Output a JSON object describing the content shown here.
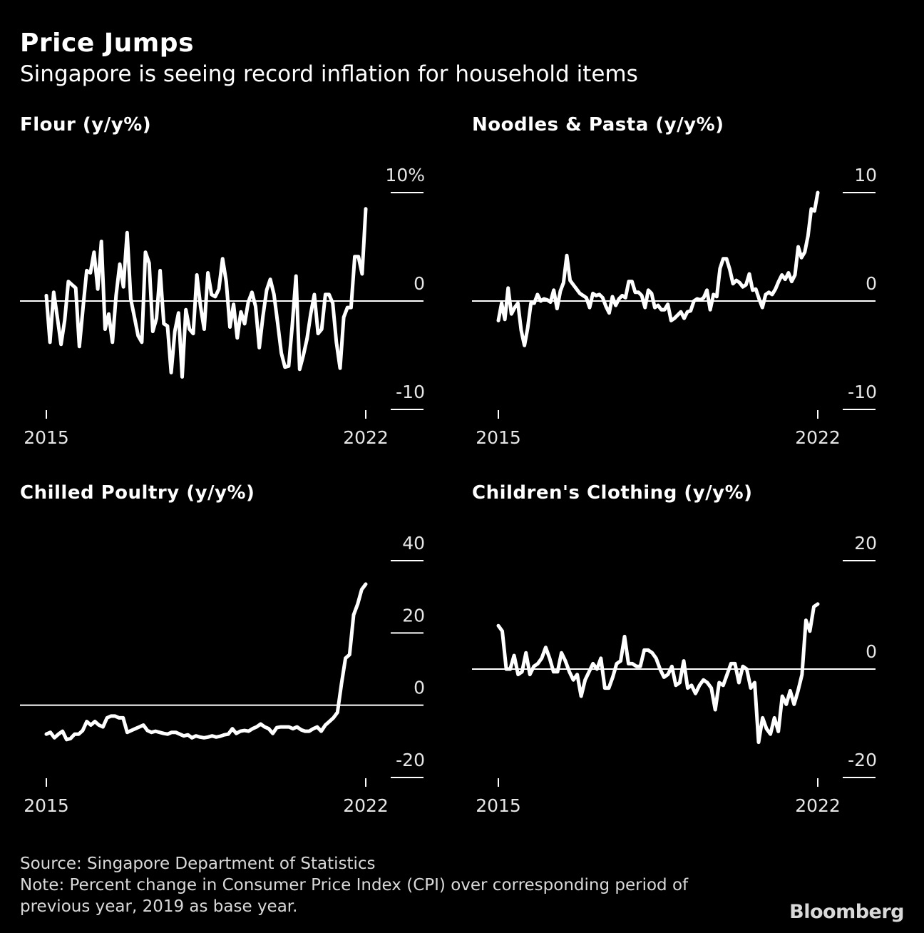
{
  "header": {
    "title": "Price Jumps",
    "subtitle": "Singapore is seeing record inflation for household items"
  },
  "footer": {
    "source": "Source: Singapore Department of Statistics",
    "note_line1": "Note: Percent change in Consumer Price Index (CPI) over corresponding period of",
    "note_line2": "previous year, 2019 as base year.",
    "logo": "Bloomberg"
  },
  "colors": {
    "background": "#000000",
    "line": "#ffffff",
    "text": "#ffffff",
    "muted": "#d9d9d9"
  },
  "chart_data": [
    {
      "type": "line",
      "title": "Flour (y/y%)",
      "x_start": 2015,
      "x_end": 2022,
      "x_tick_labels": [
        "2015",
        "2022"
      ],
      "ylim": [
        -10,
        10
      ],
      "y_tick_labels": [
        "10%",
        "0",
        "-10"
      ],
      "values": [
        0.5,
        -3.8,
        0.8,
        -1.5,
        -4.0,
        -1.8,
        1.8,
        1.5,
        1.2,
        -4.2,
        -0.6,
        2.8,
        2.6,
        4.5,
        1.1,
        5.5,
        -2.6,
        -1.2,
        -3.8,
        0.5,
        3.4,
        1.3,
        6.3,
        0.2,
        -1.5,
        -3.2,
        -3.8,
        4.5,
        3.5,
        -2.8,
        -1.6,
        2.8,
        -2.1,
        -2.3,
        -6.6,
        -2.8,
        -1.1,
        -7.0,
        -0.8,
        -2.6,
        -3.0,
        2.4,
        -0.5,
        -2.6,
        2.6,
        0.6,
        0.4,
        1.1,
        3.9,
        1.8,
        -2.4,
        -0.3,
        -3.4,
        -1.0,
        -2.1,
        -0.1,
        0.8,
        -0.5,
        -4.3,
        -1.4,
        1.0,
        2.0,
        0.6,
        -2.0,
        -4.8,
        -6.1,
        -6.0,
        -2.2,
        2.3,
        -6.3,
        -5.0,
        -3.5,
        -1.2,
        0.6,
        -3.0,
        -2.6,
        0.6,
        0.6,
        -0.2,
        -3.8,
        -6.2,
        -1.5,
        -0.6,
        -0.6,
        4.1,
        4.1,
        2.5,
        8.5
      ]
    },
    {
      "type": "line",
      "title": "Noodles & Pasta (y/y%)",
      "x_start": 2015,
      "x_end": 2022,
      "x_tick_labels": [
        "2015",
        "2022"
      ],
      "ylim": [
        -10,
        10
      ],
      "y_tick_labels": [
        "10",
        "0",
        "-10"
      ],
      "values": [
        -1.8,
        -0.2,
        -1.7,
        1.2,
        -1.2,
        -0.6,
        -0.2,
        -2.7,
        -4.1,
        -2.5,
        -0.2,
        -0.2,
        0.6,
        0.0,
        0.2,
        0.1,
        -0.1,
        1.0,
        -0.7,
        0.9,
        1.7,
        4.2,
        1.9,
        1.5,
        1.1,
        0.7,
        0.5,
        0.3,
        -0.6,
        0.7,
        0.5,
        0.6,
        0.3,
        -0.5,
        -1.1,
        0.4,
        -0.4,
        0.2,
        0.5,
        0.3,
        1.8,
        1.8,
        0.8,
        0.8,
        0.5,
        -0.6,
        1.0,
        0.7,
        -0.6,
        -0.4,
        -0.8,
        -0.8,
        -0.3,
        -1.8,
        -1.6,
        -1.3,
        -1.0,
        -1.6,
        -1.0,
        -0.9,
        0.0,
        0.2,
        0.1,
        0.3,
        1.0,
        -0.8,
        0.6,
        0.4,
        3.0,
        3.9,
        3.9,
        2.9,
        1.6,
        1.9,
        1.7,
        1.3,
        1.5,
        2.5,
        1.0,
        1.1,
        0.2,
        -0.6,
        0.6,
        0.8,
        0.6,
        1.1,
        1.8,
        2.4,
        2.0,
        2.6,
        1.8,
        2.4,
        5.0,
        4.0,
        4.5,
        6.0,
        8.5,
        8.3,
        10.0
      ]
    },
    {
      "type": "line",
      "title": "Chilled Poultry (y/y%)",
      "x_start": 2015,
      "x_end": 2022,
      "x_tick_labels": [
        "2015",
        "2022"
      ],
      "ylim": [
        -20,
        40
      ],
      "y_tick_labels": [
        "40",
        "20",
        "0",
        "-20"
      ],
      "values": [
        -8.0,
        -7.5,
        -9.0,
        -8.0,
        -7.2,
        -9.5,
        -9.2,
        -8.0,
        -8.0,
        -7.0,
        -4.5,
        -5.5,
        -4.5,
        -5.5,
        -6.0,
        -3.5,
        -3.0,
        -3.0,
        -3.5,
        -3.5,
        -7.5,
        -7.0,
        -6.5,
        -6.0,
        -5.5,
        -7.0,
        -7.5,
        -7.2,
        -7.5,
        -7.8,
        -8.0,
        -7.5,
        -7.5,
        -8.0,
        -8.5,
        -8.2,
        -9.0,
        -8.5,
        -8.8,
        -9.0,
        -8.8,
        -8.5,
        -8.8,
        -8.6,
        -8.2,
        -8.0,
        -6.5,
        -7.8,
        -7.2,
        -7.0,
        -7.2,
        -6.5,
        -6.0,
        -5.2,
        -6.0,
        -6.5,
        -7.8,
        -6.2,
        -6.0,
        -6.0,
        -6.0,
        -6.5,
        -6.0,
        -6.8,
        -7.2,
        -7.2,
        -6.5,
        -6.0,
        -7.2,
        -5.5,
        -4.5,
        -3.5,
        -2.0,
        6.0,
        13.0,
        14.0,
        25.0,
        28.0,
        32.0,
        33.5
      ]
    },
    {
      "type": "line",
      "title": "Children's Clothing (y/y%)",
      "x_start": 2015,
      "x_end": 2022,
      "x_tick_labels": [
        "2015",
        "2022"
      ],
      "ylim": [
        -20,
        20
      ],
      "y_tick_labels": [
        "20",
        "0",
        "-20"
      ],
      "values": [
        8.0,
        7.0,
        0.0,
        0.0,
        2.5,
        -1.0,
        -0.5,
        3.0,
        -1.0,
        0.5,
        1.0,
        2.0,
        4.0,
        2.0,
        -0.5,
        -0.5,
        3.0,
        1.5,
        -0.5,
        -2.0,
        -1.0,
        -5.0,
        -2.0,
        -0.5,
        1.0,
        0.0,
        2.0,
        -3.5,
        -3.5,
        -1.5,
        1.0,
        1.5,
        6.0,
        1.0,
        1.0,
        0.5,
        0.5,
        3.5,
        3.5,
        3.0,
        2.0,
        0.0,
        -1.5,
        -1.0,
        0.5,
        -3.0,
        -2.5,
        1.5,
        -3.5,
        -3.0,
        -4.5,
        -3.0,
        -2.0,
        -2.5,
        -3.5,
        -7.5,
        -2.5,
        -3.0,
        -1.0,
        1.0,
        1.0,
        -2.5,
        0.5,
        0.0,
        -3.5,
        -2.5,
        -13.5,
        -9.0,
        -11.0,
        -12.0,
        -9.0,
        -11.5,
        -5.0,
        -6.5,
        -4.0,
        -6.5,
        -4.0,
        -1.0,
        9.0,
        7.0,
        11.5,
        12.0
      ]
    }
  ]
}
